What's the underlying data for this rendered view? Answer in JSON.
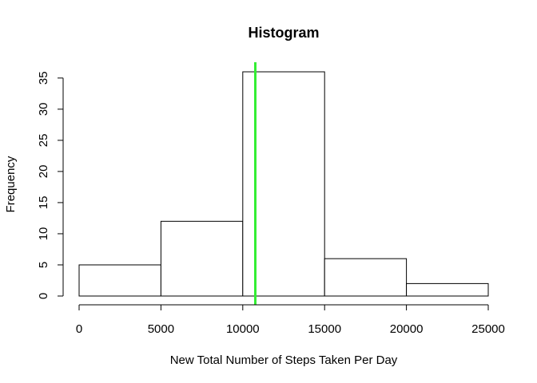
{
  "chart_data": {
    "type": "bar",
    "title": "Histogram",
    "xlabel": "New Total Number of Steps Taken Per Day",
    "ylabel": "Frequency",
    "bins": [
      {
        "start": 0,
        "end": 5000,
        "count": 5
      },
      {
        "start": 5000,
        "end": 10000,
        "count": 12
      },
      {
        "start": 10000,
        "end": 15000,
        "count": 36
      },
      {
        "start": 15000,
        "end": 20000,
        "count": 6
      },
      {
        "start": 20000,
        "end": 25000,
        "count": 2
      }
    ],
    "x_ticks": [
      0,
      5000,
      10000,
      15000,
      20000,
      25000
    ],
    "y_ticks": [
      0,
      5,
      10,
      15,
      20,
      25,
      30,
      35
    ],
    "xlim": [
      0,
      25000
    ],
    "ylim": [
      0,
      36
    ],
    "vline": {
      "x": 10766,
      "color": "#33ee33"
    },
    "bar_fill": "#ffffff",
    "bar_stroke": "#000000",
    "grid": false
  }
}
